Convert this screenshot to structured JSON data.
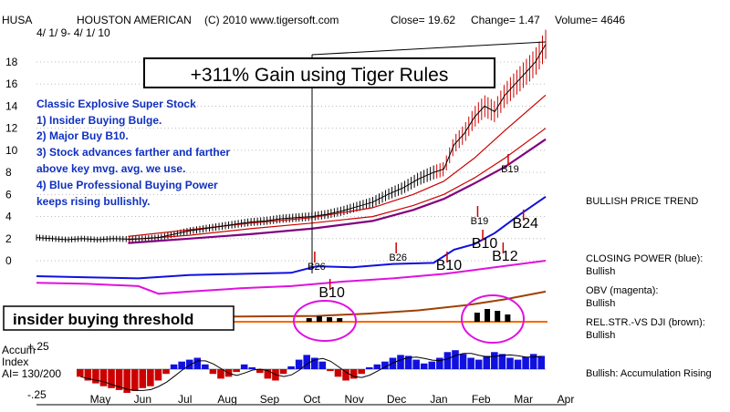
{
  "header": {
    "symbol": "HUSA",
    "company": "HOUSTON AMERICAN",
    "copyright": "(C) 2010 www.tigersoft.com",
    "close": "Close=  19.62",
    "change": "Change= 1.47",
    "volume": "Volume=  4646",
    "date_range": "4/ 1/ 9-  4/ 1/ 10"
  },
  "banner": "+311% Gain using Tiger Rules",
  "notes": [
    "Classic Explosive Super Stock",
    "1) Insider Buying Bulge.",
    "2) Major Buy B10.",
    "3) Stock advances farther and farther",
    "above key mvg. avg. we use.",
    "4) Blue Professional Buying Power",
    "keeps rising bullishly."
  ],
  "insider_box": "insider buying threshold",
  "accum_labels": {
    "title1": "Accum",
    "title2": "Index",
    "ai": "AI= 130/200",
    "top": "+.25",
    "bottom": "-.25"
  },
  "side_labels": {
    "price_trend": "BULLISH PRICE TREND",
    "cp_title": "CLOSING POWER (blue):",
    "cp_value": "Bullish",
    "obv_title": "OBV (magenta):",
    "obv_value": "Bullish",
    "rs_title": "REL.STR.-VS DJI (brown):",
    "rs_value": "Bullish",
    "accum_status": "Bullish: Accumulation Rising"
  },
  "signals": [
    {
      "label": "B26",
      "size": "small"
    },
    {
      "label": "B26",
      "size": "small"
    },
    {
      "label": "B10",
      "size": "big"
    },
    {
      "label": "B10",
      "size": "big"
    },
    {
      "label": "B12",
      "size": "big"
    },
    {
      "label": "B19",
      "size": "small"
    },
    {
      "label": "B19",
      "size": "small"
    },
    {
      "label": "B24",
      "size": "big"
    },
    {
      "label": "B10",
      "size": "big"
    }
  ],
  "colors": {
    "price": "#cc0000",
    "ma_fast": "#cc0000",
    "ma_slow": "#800080",
    "closing_power": "#1010e0",
    "obv": "#e010e0",
    "rel_strength": "#a04000",
    "accum_pos": "#1010e0",
    "accum_neg": "#cc0000",
    "banner_border": "#000000",
    "notes": "#1030c0",
    "insider_line": "#ff6600",
    "ellipse": "#e010e0"
  },
  "chart_data": {
    "type": "line",
    "x_ticks": [
      "May",
      "Jun",
      "Jul",
      "Aug",
      "Sep",
      "Oct",
      "Nov",
      "Dec",
      "Jan",
      "Feb",
      "Mar",
      "Apr"
    ],
    "y_ticks": [
      0,
      2,
      4,
      6,
      8,
      10,
      12,
      14,
      16,
      18
    ],
    "ylim": [
      -1,
      19
    ],
    "price_series": [
      [
        0.0,
        2.1
      ],
      [
        0.03,
        2.0
      ],
      [
        0.06,
        1.9
      ],
      [
        0.09,
        2.0
      ],
      [
        0.12,
        1.9
      ],
      [
        0.15,
        2.0
      ],
      [
        0.18,
        1.95
      ],
      [
        0.21,
        2.0
      ],
      [
        0.24,
        2.1
      ],
      [
        0.27,
        2.4
      ],
      [
        0.3,
        2.7
      ],
      [
        0.33,
        2.9
      ],
      [
        0.36,
        3.1
      ],
      [
        0.39,
        3.3
      ],
      [
        0.42,
        3.5
      ],
      [
        0.45,
        3.6
      ],
      [
        0.48,
        3.8
      ],
      [
        0.51,
        3.9
      ],
      [
        0.54,
        4.0
      ],
      [
        0.57,
        4.2
      ],
      [
        0.6,
        4.5
      ],
      [
        0.63,
        4.9
      ],
      [
        0.66,
        5.3
      ],
      [
        0.69,
        6.0
      ],
      [
        0.72,
        6.6
      ],
      [
        0.75,
        7.4
      ],
      [
        0.78,
        8.0
      ],
      [
        0.8,
        8.3
      ],
      [
        0.82,
        10.5
      ],
      [
        0.84,
        11.5
      ],
      [
        0.86,
        13.0
      ],
      [
        0.88,
        14.0
      ],
      [
        0.9,
        13.5
      ],
      [
        0.92,
        15.0
      ],
      [
        0.94,
        16.0
      ],
      [
        0.96,
        17.0
      ],
      [
        0.98,
        18.0
      ],
      [
        1.0,
        19.6
      ]
    ],
    "ma_fast": [
      [
        0.18,
        2.2
      ],
      [
        0.3,
        2.8
      ],
      [
        0.42,
        3.4
      ],
      [
        0.54,
        3.9
      ],
      [
        0.66,
        4.8
      ],
      [
        0.74,
        6.0
      ],
      [
        0.8,
        7.2
      ],
      [
        0.86,
        9.3
      ],
      [
        0.92,
        11.8
      ],
      [
        1.0,
        15.0
      ]
    ],
    "ma_fast2": [
      [
        0.18,
        1.9
      ],
      [
        0.3,
        2.3
      ],
      [
        0.42,
        2.9
      ],
      [
        0.54,
        3.4
      ],
      [
        0.66,
        4.0
      ],
      [
        0.74,
        5.0
      ],
      [
        0.8,
        6.0
      ],
      [
        0.86,
        7.5
      ],
      [
        0.92,
        9.3
      ],
      [
        1.0,
        12.0
      ]
    ],
    "ma_slow": [
      [
        0.18,
        1.6
      ],
      [
        0.3,
        2.0
      ],
      [
        0.42,
        2.4
      ],
      [
        0.54,
        2.9
      ],
      [
        0.66,
        3.6
      ],
      [
        0.74,
        4.6
      ],
      [
        0.8,
        5.6
      ],
      [
        0.86,
        7.0
      ],
      [
        0.92,
        8.5
      ],
      [
        1.0,
        11.0
      ]
    ],
    "closing_power": [
      [
        0.0,
        -1.4
      ],
      [
        0.1,
        -1.5
      ],
      [
        0.2,
        -1.6
      ],
      [
        0.3,
        -1.3
      ],
      [
        0.4,
        -1.2
      ],
      [
        0.5,
        -1.1
      ],
      [
        0.55,
        -0.5
      ],
      [
        0.62,
        -0.6
      ],
      [
        0.7,
        -0.3
      ],
      [
        0.78,
        -0.2
      ],
      [
        0.82,
        1.0
      ],
      [
        0.86,
        1.5
      ],
      [
        0.9,
        2.5
      ],
      [
        0.95,
        4.2
      ],
      [
        1.0,
        5.8
      ]
    ],
    "obv": [
      [
        0.0,
        -2.0
      ],
      [
        0.1,
        -2.1
      ],
      [
        0.2,
        -2.3
      ],
      [
        0.24,
        -3.0
      ],
      [
        0.3,
        -2.8
      ],
      [
        0.4,
        -2.5
      ],
      [
        0.5,
        -2.3
      ],
      [
        0.6,
        -1.9
      ],
      [
        0.7,
        -1.6
      ],
      [
        0.8,
        -1.2
      ],
      [
        0.9,
        -0.6
      ],
      [
        1.0,
        0.0
      ]
    ],
    "rel_strength": [
      [
        0.0,
        -5.0
      ],
      [
        0.2,
        -5.1
      ],
      [
        0.4,
        -5.05
      ],
      [
        0.55,
        -5.0
      ],
      [
        0.65,
        -4.8
      ],
      [
        0.75,
        -4.5
      ],
      [
        0.85,
        -4.0
      ],
      [
        0.92,
        -3.5
      ],
      [
        1.0,
        -2.8
      ]
    ],
    "accum_index": [
      -0.08,
      -0.12,
      -0.15,
      -0.18,
      -0.2,
      -0.22,
      -0.25,
      -0.23,
      -0.2,
      -0.18,
      -0.12,
      -0.05,
      0.05,
      0.08,
      0.1,
      0.12,
      0.05,
      -0.05,
      -0.1,
      -0.08,
      -0.03,
      0.05,
      0.02,
      -0.04,
      -0.1,
      -0.12,
      -0.05,
      0.03,
      0.1,
      0.15,
      0.12,
      0.08,
      -0.02,
      -0.08,
      -0.12,
      -0.1,
      -0.05,
      0.02,
      0.05,
      0.08,
      0.12,
      0.15,
      0.14,
      0.1,
      0.06,
      0.08,
      0.12,
      0.18,
      0.2,
      0.16,
      0.12,
      0.1,
      0.14,
      0.18,
      0.16,
      0.12,
      0.1,
      0.13,
      0.16,
      0.14
    ]
  }
}
